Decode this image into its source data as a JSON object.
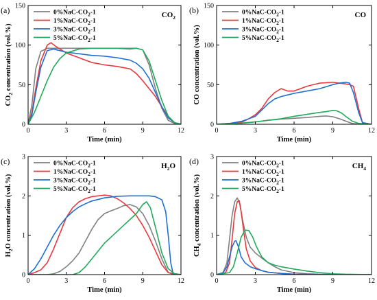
{
  "colors": {
    "0%NaC-CO2-1": "#808080",
    "1%NaC-CO2-1": "#e8383d",
    "3%NaC-CO2-1": "#1f6fd1",
    "5%NaC-CO2-1": "#1faa5a"
  },
  "legend_entries": [
    {
      "prefix": "0%NaC-CO",
      "sub": "2",
      "suffix": "-1"
    },
    {
      "prefix": "1%NaC-CO",
      "sub": "2",
      "suffix": "-1"
    },
    {
      "prefix": "3%NaC-CO",
      "sub": "2",
      "suffix": "-1"
    },
    {
      "prefix": "5%NaC-CO",
      "sub": "2",
      "suffix": "-1"
    }
  ],
  "chart_data": [
    {
      "type": "line",
      "panel_label": "(a)",
      "species": {
        "main": "CO",
        "sub": "2"
      },
      "xlabel": "Time (min)",
      "ylabel": {
        "main": "CO",
        "sub": "2",
        "rest": " concentration (vol.%)"
      },
      "xlim": [
        0,
        12
      ],
      "ylim": [
        0,
        150
      ],
      "xticks": [
        0,
        3,
        6,
        9,
        12
      ],
      "yticks": [
        0,
        50,
        100,
        150
      ],
      "legend_placement": "top-left",
      "series": [
        {
          "name": "0%NaC-CO2-1",
          "x": [
            0,
            0.3,
            0.6,
            1,
            1.5,
            2,
            3,
            4,
            5,
            6,
            7,
            8,
            8.5,
            9,
            9.5,
            10,
            10.5,
            11,
            11.5,
            12
          ],
          "y": [
            0,
            25,
            70,
            92,
            96,
            96,
            96,
            96,
            96,
            96,
            96,
            96,
            96,
            94,
            75,
            45,
            20,
            5,
            1,
            0
          ]
        },
        {
          "name": "1%NaC-CO2-1",
          "x": [
            0,
            0.3,
            0.6,
            1,
            1.5,
            1.8,
            2.2,
            3,
            4,
            5,
            6,
            7,
            8,
            8.5,
            9,
            9.5,
            10,
            10.5,
            11,
            11.5,
            12
          ],
          "y": [
            0,
            15,
            45,
            80,
            100,
            103,
            98,
            90,
            84,
            78,
            75,
            73,
            70,
            64,
            55,
            45,
            35,
            22,
            10,
            2,
            0
          ]
        },
        {
          "name": "3%NaC-CO2-1",
          "x": [
            0,
            0.3,
            0.6,
            1,
            1.5,
            2,
            3,
            4,
            5,
            6,
            7,
            8,
            8.5,
            9,
            9.5,
            10,
            10.5,
            11,
            11.5,
            12
          ],
          "y": [
            0,
            12,
            40,
            72,
            93,
            95,
            91,
            89,
            87,
            86,
            84,
            81,
            77,
            70,
            58,
            40,
            22,
            8,
            2,
            0
          ]
        },
        {
          "name": "5%NaC-CO2-1",
          "x": [
            0,
            0.5,
            1,
            1.5,
            2,
            2.5,
            3,
            4,
            5,
            6,
            7,
            8,
            8.5,
            9,
            9.5,
            10,
            10.5,
            11,
            11.5,
            12
          ],
          "y": [
            0,
            15,
            35,
            55,
            72,
            83,
            90,
            95,
            96,
            96,
            96,
            95,
            96,
            94,
            80,
            55,
            30,
            10,
            2,
            0
          ]
        }
      ]
    },
    {
      "type": "line",
      "panel_label": "(b)",
      "species": {
        "main": "CO",
        "sub": ""
      },
      "xlabel": "Time (min)",
      "ylabel": {
        "main": "CO concentration (vol.%)",
        "sub": "",
        "rest": ""
      },
      "xlim": [
        0,
        12
      ],
      "ylim": [
        0,
        150
      ],
      "xticks": [
        0,
        3,
        6,
        9,
        12
      ],
      "yticks": [
        0,
        50,
        100,
        150
      ],
      "legend_placement": "top-left",
      "series": [
        {
          "name": "0%NaC-CO2-1",
          "x": [
            0,
            1,
            2,
            3,
            4,
            5,
            6,
            7,
            8,
            8.5,
            9,
            9.5,
            10,
            10.5,
            11,
            12
          ],
          "y": [
            0,
            0.5,
            1.5,
            3,
            5,
            6.5,
            7.5,
            8.5,
            10,
            10.5,
            9.5,
            7,
            4,
            1,
            0,
            0
          ]
        },
        {
          "name": "1%NaC-CO2-1",
          "x": [
            0,
            1,
            2,
            2.5,
            3,
            3.5,
            4,
            4.5,
            5,
            5.5,
            6,
            6.5,
            7,
            8,
            9,
            9.5,
            10,
            10.3,
            10.6,
            11,
            11.3,
            12
          ],
          "y": [
            0,
            1,
            3,
            7,
            12,
            20,
            32,
            40,
            45,
            42,
            42,
            45,
            48,
            52,
            53,
            52,
            51,
            50,
            48,
            20,
            2,
            0
          ]
        },
        {
          "name": "3%NaC-CO2-1",
          "x": [
            0,
            1,
            2,
            3,
            3.5,
            4,
            4.5,
            5,
            5.5,
            6,
            7,
            8,
            9,
            9.5,
            10,
            10.3,
            10.6,
            11,
            11.3,
            12
          ],
          "y": [
            0,
            1,
            4,
            10,
            18,
            26,
            32,
            35,
            37,
            39,
            42,
            45,
            50,
            52,
            53,
            52,
            40,
            15,
            2,
            0
          ]
        },
        {
          "name": "5%NaC-CO2-1",
          "x": [
            0,
            1,
            2,
            3,
            4,
            5,
            6,
            7,
            8,
            8.5,
            9,
            9.3,
            9.7,
            10,
            10.5,
            11,
            12
          ],
          "y": [
            0,
            0.5,
            1.5,
            3,
            5,
            7,
            10,
            12.5,
            15,
            16,
            17.5,
            17,
            14,
            10,
            4,
            1,
            0
          ]
        }
      ]
    },
    {
      "type": "line",
      "panel_label": "(c)",
      "species": {
        "main": "H",
        "sub": "2",
        "rest": "O"
      },
      "xlabel": "Time (min)",
      "ylabel": {
        "main": "H",
        "sub": "2",
        "rest": "O concentration (vol.%)"
      },
      "xlim": [
        0,
        12
      ],
      "ylim": [
        0,
        3
      ],
      "xticks": [
        0,
        3,
        6,
        9,
        12
      ],
      "yticks": [
        0,
        1,
        2,
        3
      ],
      "legend_placement": "top-left",
      "series": [
        {
          "name": "0%NaC-CO2-1",
          "x": [
            0,
            1.5,
            2,
            2.5,
            3,
            3.5,
            4,
            4.5,
            5,
            5.5,
            6,
            6.5,
            7,
            7.5,
            8,
            8.5,
            9,
            9.5,
            10,
            10.5,
            11,
            11.5,
            12
          ],
          "y": [
            0,
            0,
            0.02,
            0.08,
            0.2,
            0.35,
            0.55,
            0.85,
            1.15,
            1.4,
            1.55,
            1.62,
            1.68,
            1.75,
            1.78,
            1.72,
            1.55,
            1.25,
            0.85,
            0.4,
            0.05,
            0,
            0
          ]
        },
        {
          "name": "1%NaC-CO2-1",
          "x": [
            0,
            0.5,
            1,
            1.5,
            2,
            2.5,
            3,
            3.5,
            4,
            4.5,
            5,
            5.5,
            6,
            6.5,
            7,
            7.5,
            8,
            8.5,
            9,
            9.5,
            10,
            10.5,
            11,
            12
          ],
          "y": [
            0,
            0.05,
            0.12,
            0.3,
            0.65,
            1.05,
            1.45,
            1.7,
            1.85,
            1.93,
            1.98,
            2.0,
            2.02,
            2.0,
            1.93,
            1.82,
            1.68,
            1.5,
            1.25,
            0.95,
            0.6,
            0.25,
            0.05,
            0
          ]
        },
        {
          "name": "3%NaC-CO2-1",
          "x": [
            0,
            0.5,
            1,
            1.5,
            2,
            2.5,
            3,
            3.5,
            4,
            4.5,
            5,
            6,
            7,
            8,
            9,
            9.5,
            10,
            10.5,
            10.8,
            11,
            11.2,
            11.4,
            12
          ],
          "y": [
            0,
            0.15,
            0.4,
            0.7,
            1.0,
            1.25,
            1.45,
            1.6,
            1.72,
            1.8,
            1.87,
            1.95,
            1.99,
            2.0,
            2.0,
            2.0,
            1.98,
            1.9,
            1.6,
            1.0,
            0.3,
            0,
            0
          ]
        },
        {
          "name": "5%NaC-CO2-1",
          "x": [
            0,
            3.5,
            4,
            4.5,
            5,
            5.5,
            6,
            6.5,
            7,
            7.5,
            8,
            8.5,
            9,
            9.3,
            9.6,
            10,
            10.5,
            11,
            11.5,
            12
          ],
          "y": [
            0,
            0,
            0.05,
            0.2,
            0.4,
            0.6,
            0.8,
            0.95,
            1.1,
            1.25,
            1.4,
            1.55,
            1.78,
            1.85,
            1.7,
            1.2,
            0.55,
            0.15,
            0.02,
            0
          ]
        }
      ]
    },
    {
      "type": "line",
      "panel_label": "(d)",
      "species": {
        "main": "CH",
        "sub": "4",
        "rest": ""
      },
      "xlabel": "Time (min)",
      "ylabel": {
        "main": "CH",
        "sub": "4",
        "rest": " concentration (vol.%)"
      },
      "xlim": [
        0,
        12
      ],
      "ylim": [
        0,
        3
      ],
      "xticks": [
        0,
        3,
        6,
        9,
        12
      ],
      "yticks": [
        0,
        1,
        2,
        3
      ],
      "legend_placement": "top-left",
      "series": [
        {
          "name": "0%NaC-CO2-1",
          "x": [
            0,
            0.5,
            0.8,
            1,
            1.2,
            1.4,
            1.6,
            1.8,
            2.0,
            2.3,
            2.6,
            3,
            3.5,
            4,
            4.5,
            5,
            6,
            7,
            8,
            9,
            12
          ],
          "y": [
            0,
            0.05,
            0.3,
            0.9,
            1.5,
            1.85,
            1.95,
            1.8,
            1.4,
            0.95,
            0.7,
            0.55,
            0.42,
            0.3,
            0.2,
            0.12,
            0.05,
            0.02,
            0.01,
            0,
            0
          ]
        },
        {
          "name": "1%NaC-CO2-1",
          "x": [
            0,
            0.7,
            1,
            1.2,
            1.4,
            1.6,
            1.75,
            1.9,
            2.1,
            2.3,
            2.6,
            3,
            3.5,
            4,
            5,
            6,
            8,
            12
          ],
          "y": [
            0,
            0.05,
            0.3,
            0.9,
            1.55,
            1.85,
            1.88,
            1.6,
            1.1,
            0.65,
            0.35,
            0.18,
            0.1,
            0.06,
            0.03,
            0.01,
            0,
            0
          ]
        },
        {
          "name": "3%NaC-CO2-1",
          "x": [
            0,
            0.5,
            0.8,
            1,
            1.2,
            1.4,
            1.5,
            1.7,
            1.9,
            2.2,
            2.6,
            3,
            3.5,
            4,
            5,
            6,
            12
          ],
          "y": [
            0,
            0.05,
            0.2,
            0.45,
            0.7,
            0.85,
            0.86,
            0.7,
            0.45,
            0.3,
            0.2,
            0.15,
            0.1,
            0.06,
            0.03,
            0.01,
            0
          ]
        },
        {
          "name": "5%NaC-CO2-1",
          "x": [
            0,
            1,
            1.3,
            1.6,
            1.9,
            2.2,
            2.5,
            2.8,
            3.1,
            3.5,
            4,
            4.5,
            5,
            6,
            7,
            8,
            9,
            10,
            12
          ],
          "y": [
            0,
            0.05,
            0.2,
            0.55,
            0.95,
            1.13,
            1.12,
            0.95,
            0.7,
            0.45,
            0.3,
            0.24,
            0.2,
            0.14,
            0.09,
            0.05,
            0.02,
            0.01,
            0
          ]
        }
      ]
    }
  ]
}
